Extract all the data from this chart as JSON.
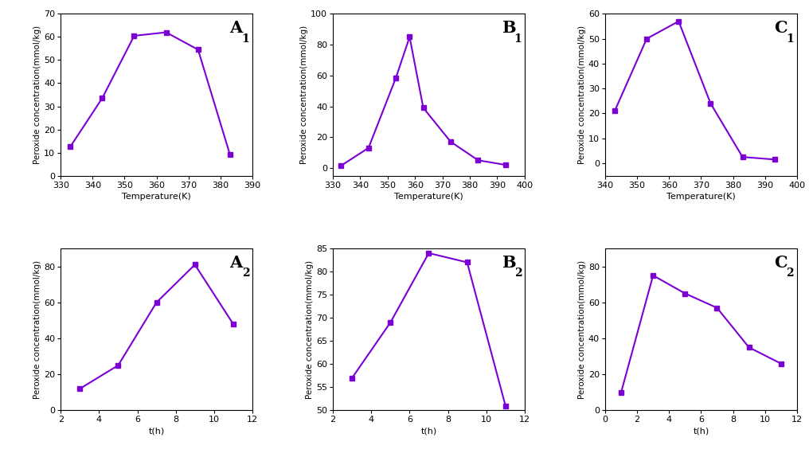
{
  "A1": {
    "x": [
      333,
      343,
      353,
      363,
      373,
      383
    ],
    "y": [
      12.5,
      33.5,
      60.5,
      62.0,
      54.5,
      9.0
    ],
    "xlabel": "Temperature(K)",
    "ylabel": "Peroxide concentration(mmol/kg)",
    "xlim": [
      330,
      390
    ],
    "ylim": [
      0,
      70
    ],
    "yticks": [
      0,
      10,
      20,
      30,
      40,
      50,
      60,
      70
    ],
    "xticks": [
      330,
      340,
      350,
      360,
      370,
      380,
      390
    ],
    "label": "A",
    "sub": "1"
  },
  "B1": {
    "x": [
      333,
      343,
      353,
      358,
      363,
      373,
      383,
      393
    ],
    "y": [
      1.5,
      13.0,
      58.5,
      85.0,
      39.0,
      17.0,
      5.0,
      2.0
    ],
    "xlabel": "Temperature(K)",
    "ylabel": "Peroxide concentration(mmol/kg)",
    "xlim": [
      330,
      400
    ],
    "ylim": [
      -5,
      100
    ],
    "yticks": [
      0,
      20,
      40,
      60,
      80,
      100
    ],
    "xticks": [
      330,
      340,
      350,
      360,
      370,
      380,
      390,
      400
    ],
    "label": "B",
    "sub": "1"
  },
  "C1": {
    "x": [
      343,
      353,
      363,
      373,
      383,
      393
    ],
    "y": [
      21.0,
      50.0,
      57.0,
      24.0,
      2.5,
      1.5
    ],
    "xlabel": "Temperature(K)",
    "ylabel": "Peroxide concentration(mmol/kg)",
    "xlim": [
      340,
      400
    ],
    "ylim": [
      -5,
      60
    ],
    "yticks": [
      0,
      10,
      20,
      30,
      40,
      50,
      60
    ],
    "xticks": [
      340,
      350,
      360,
      370,
      380,
      390,
      400
    ],
    "label": "C",
    "sub": "1"
  },
  "A2": {
    "x": [
      3,
      5,
      7,
      9,
      11
    ],
    "y": [
      12.0,
      25.0,
      60.0,
      81.0,
      48.0
    ],
    "xlabel": "t(h)",
    "ylabel": "Peroxide concentration(mmol/kg)",
    "xlim": [
      2,
      12
    ],
    "ylim": [
      0,
      90
    ],
    "yticks": [
      0,
      20,
      40,
      60,
      80
    ],
    "xticks": [
      2,
      4,
      6,
      8,
      10,
      12
    ],
    "label": "A",
    "sub": "2"
  },
  "B2": {
    "x": [
      3,
      5,
      7,
      9,
      11
    ],
    "y": [
      57.0,
      69.0,
      84.0,
      82.0,
      51.0
    ],
    "xlabel": "t(h)",
    "ylabel": "Peroxide concentration(mmol/kg)",
    "xlim": [
      2,
      12
    ],
    "ylim": [
      50,
      85
    ],
    "yticks": [
      50,
      55,
      60,
      65,
      70,
      75,
      80,
      85
    ],
    "xticks": [
      2,
      4,
      6,
      8,
      10,
      12
    ],
    "label": "B",
    "sub": "2"
  },
  "C2": {
    "x": [
      1,
      3,
      5,
      7,
      9,
      11
    ],
    "y": [
      10.0,
      75.0,
      65.0,
      57.0,
      35.0,
      26.0
    ],
    "xlabel": "t(h)",
    "ylabel": "Peroxide concentration(mmol/kg)",
    "xlim": [
      0,
      12
    ],
    "ylim": [
      0,
      90
    ],
    "yticks": [
      0,
      20,
      40,
      60,
      80
    ],
    "xticks": [
      0,
      2,
      4,
      6,
      8,
      10,
      12
    ],
    "label": "C",
    "sub": "2"
  },
  "line_color": "#7B00D4",
  "marker": "s",
  "markersize": 4,
  "linewidth": 1.5,
  "label_fontsize": 15,
  "sub_fontsize": 10,
  "axis_fontsize": 8,
  "tick_fontsize": 8
}
